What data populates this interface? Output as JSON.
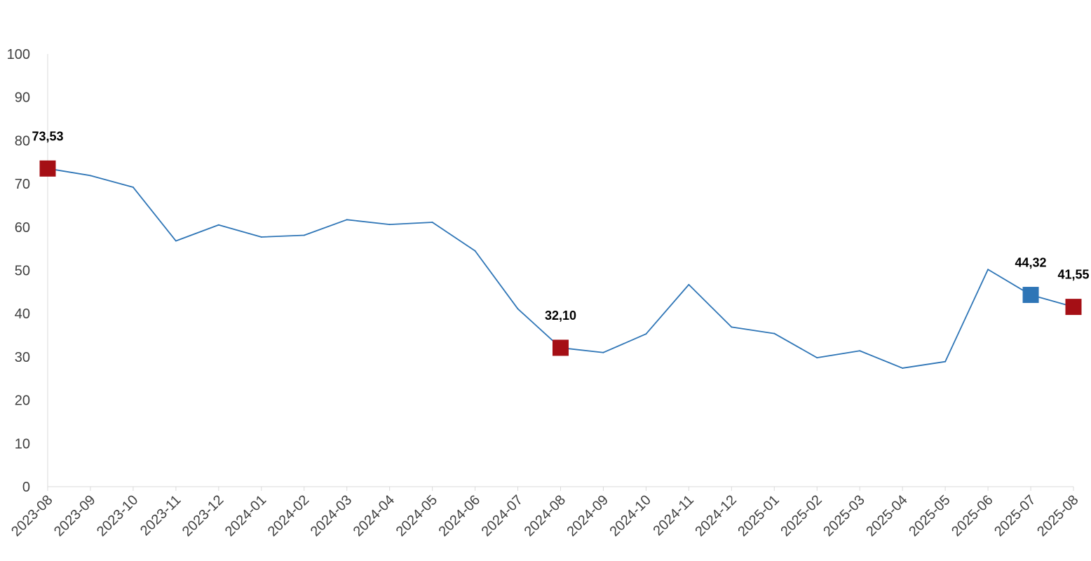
{
  "chart_data": {
    "type": "line",
    "title": "",
    "xlabel": "",
    "ylabel": "",
    "ylim": [
      0,
      100
    ],
    "yticks": [
      0,
      10,
      20,
      30,
      40,
      50,
      60,
      70,
      80,
      90,
      100
    ],
    "grid": false,
    "legend": "none",
    "categories": [
      "2023-08",
      "2023-09",
      "2023-10",
      "2023-11",
      "2023-12",
      "2024-01",
      "2024-02",
      "2024-03",
      "2024-04",
      "2024-05",
      "2024-06",
      "2024-07",
      "2024-08",
      "2024-09",
      "2024-10",
      "2024-11",
      "2024-12",
      "2025-01",
      "2025-02",
      "2025-03",
      "2025-04",
      "2025-05",
      "2025-06",
      "2025-07",
      "2025-08"
    ],
    "series": [
      {
        "values": [
          73.53,
          71.9,
          69.2,
          56.8,
          60.5,
          57.7,
          58.1,
          61.7,
          60.6,
          61.1,
          54.5,
          41.1,
          32.1,
          31.0,
          35.3,
          46.7,
          36.9,
          35.4,
          29.8,
          31.4,
          27.4,
          28.9,
          50.2,
          44.32,
          41.55
        ],
        "color": "#2E75B6"
      }
    ],
    "highlights": [
      {
        "index": 0,
        "label": "73,53",
        "color": "#A50F15"
      },
      {
        "index": 12,
        "label": "32,10",
        "color": "#A50F15"
      },
      {
        "index": 23,
        "label": "44,32",
        "color": "#2E75B6"
      },
      {
        "index": 24,
        "label": "41,55",
        "color": "#A50F15"
      }
    ],
    "colors": {
      "axis": "#D9D9D9",
      "tick_text": "#404040",
      "label_text": "#000000"
    }
  }
}
